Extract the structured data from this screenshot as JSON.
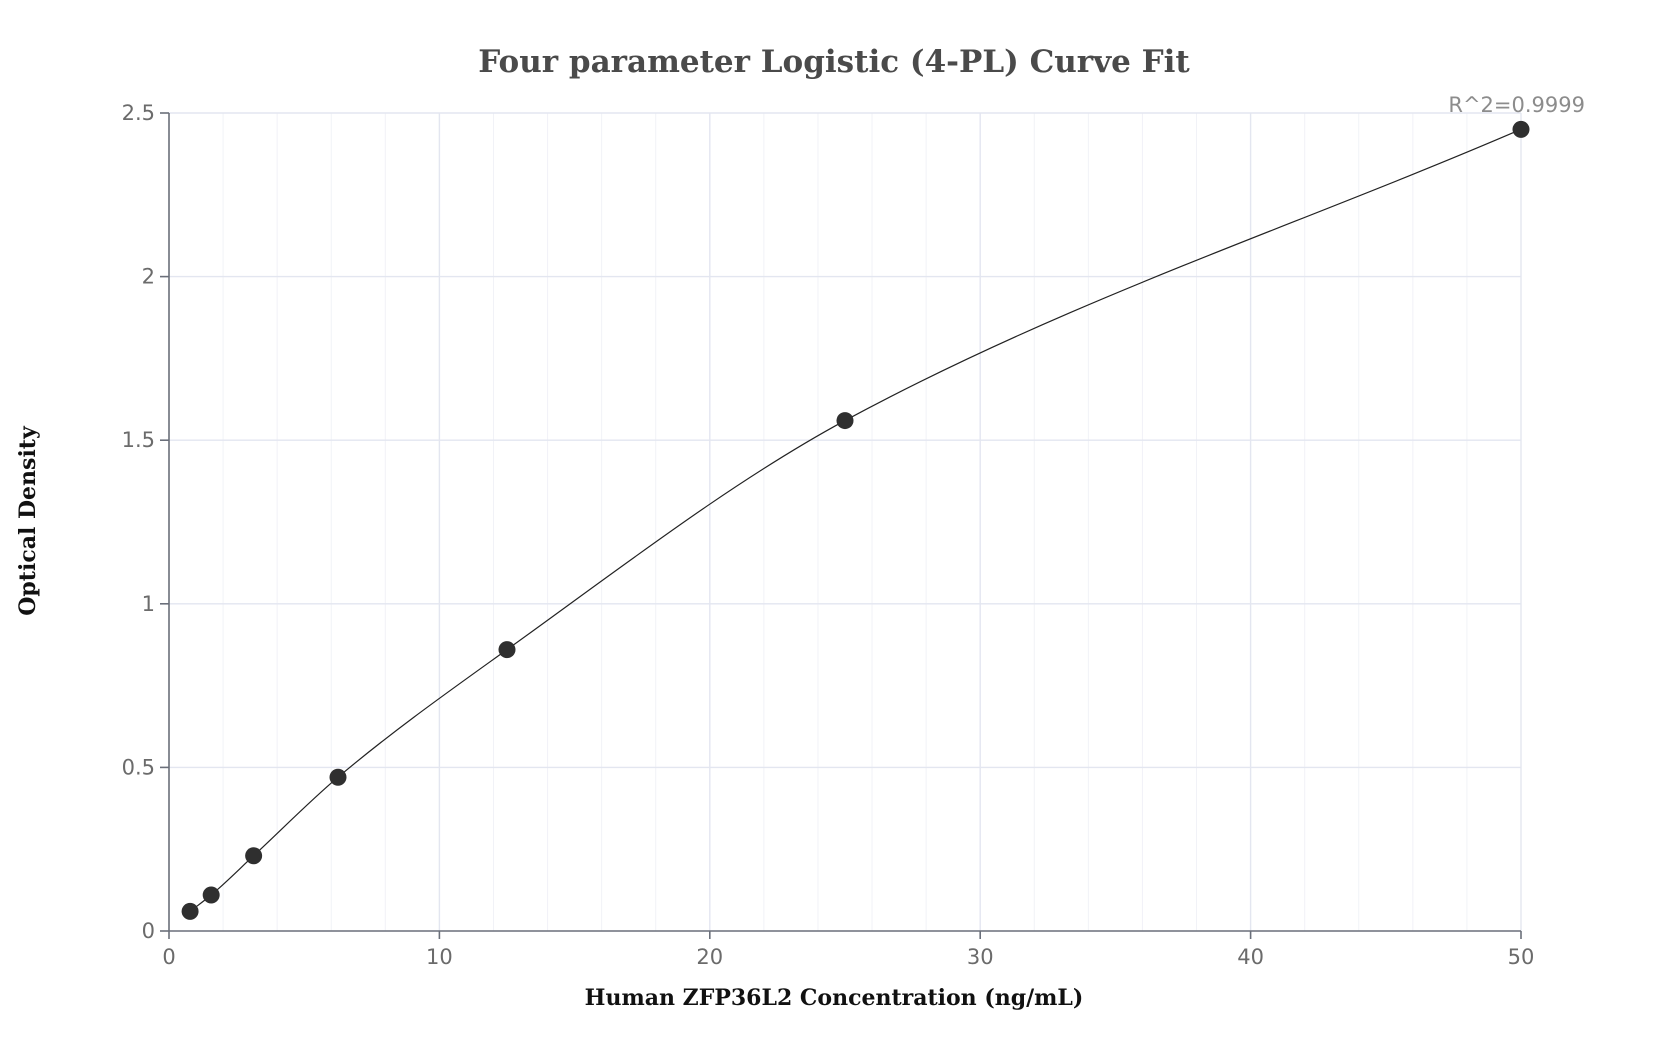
{
  "chart_data": {
    "type": "scatter",
    "title": "Four parameter Logistic (4-PL) Curve Fit",
    "xlabel": "Human ZFP36L2 Concentration (ng/mL)",
    "ylabel": "Optical Density",
    "xlim": [
      0,
      50
    ],
    "ylim": [
      0,
      2.5
    ],
    "x_ticks": [
      0,
      10,
      20,
      30,
      40,
      50
    ],
    "x_tick_labels": [
      "0",
      "10",
      "20",
      "30",
      "40",
      "50"
    ],
    "y_ticks": [
      0,
      0.5,
      1,
      1.5,
      2,
      2.5
    ],
    "y_tick_labels": [
      "0",
      "0.5",
      "1",
      "1.5",
      "2",
      "2.5"
    ],
    "grid": true,
    "annotation": "R^2=0.9999",
    "series": [
      {
        "type": "scatter",
        "x": [
          0.78,
          1.56,
          3.13,
          6.25,
          12.5,
          25,
          50
        ],
        "y": [
          0.06,
          0.11,
          0.23,
          0.47,
          0.86,
          1.56,
          2.45
        ]
      },
      {
        "type": "line",
        "x": [
          0.78,
          1.56,
          3.13,
          6.25,
          12.5,
          25,
          50
        ],
        "y": [
          0.06,
          0.11,
          0.23,
          0.47,
          0.86,
          1.56,
          2.45
        ]
      }
    ],
    "colors": {
      "points": "#2f2f2f",
      "curve": "#222222",
      "grid_major": "#e3e6f0",
      "grid_minor": "#f1f2f7",
      "axis": "#6a6f7a"
    }
  }
}
